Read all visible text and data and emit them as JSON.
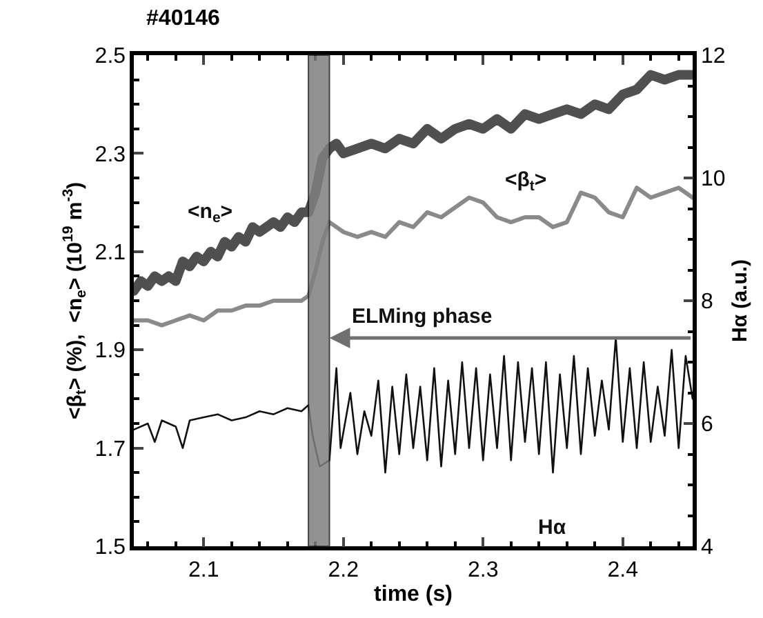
{
  "chart_data": {
    "type": "line",
    "title": "#40146",
    "xlabel": "time (s)",
    "ylabel": "<β$_{t}$> (%),  <n$_{e}$> (10$^{19}$ m$^{-3}$)",
    "y2label": "Hα (a.u.)",
    "xlim": [
      2.05,
      2.45
    ],
    "xticks": [
      2.1,
      2.2,
      2.3,
      2.4
    ],
    "ylim": [
      1.5,
      2.5
    ],
    "yticks": [
      1.5,
      1.7,
      1.9,
      2.1,
      2.3,
      2.5
    ],
    "y2lim": [
      4,
      12
    ],
    "y2ticks": [
      4,
      6,
      8,
      10,
      12
    ],
    "legend": false,
    "marker": "none",
    "line_style": "solid",
    "bands": [
      {
        "axis": "x",
        "from": 2.175,
        "to": 2.19,
        "color": "#808080"
      }
    ],
    "annotations": [
      {
        "text": "ELMing phase",
        "x": 2.19,
        "y": 1.924
      }
    ],
    "series": [
      {
        "name": "<n$_{e}$>",
        "color": "#505050",
        "x": [
          2.05,
          2.055,
          2.06,
          2.065,
          2.07,
          2.075,
          2.08,
          2.085,
          2.09,
          2.095,
          2.1,
          2.105,
          2.11,
          2.115,
          2.12,
          2.125,
          2.13,
          2.135,
          2.14,
          2.145,
          2.15,
          2.155,
          2.16,
          2.165,
          2.17,
          2.175,
          2.18,
          2.185,
          2.19,
          2.195,
          2.2,
          2.21,
          2.22,
          2.23,
          2.24,
          2.25,
          2.26,
          2.27,
          2.28,
          2.29,
          2.3,
          2.31,
          2.32,
          2.33,
          2.34,
          2.35,
          2.36,
          2.37,
          2.38,
          2.39,
          2.4,
          2.41,
          2.42,
          2.43,
          2.44,
          2.45
        ],
        "values": [
          2.02,
          2.04,
          2.03,
          2.05,
          2.04,
          2.05,
          2.04,
          2.08,
          2.07,
          2.09,
          2.08,
          2.1,
          2.09,
          2.12,
          2.11,
          2.13,
          2.12,
          2.15,
          2.14,
          2.15,
          2.16,
          2.15,
          2.17,
          2.16,
          2.18,
          2.18,
          2.22,
          2.29,
          2.31,
          2.32,
          2.3,
          2.31,
          2.32,
          2.31,
          2.33,
          2.32,
          2.35,
          2.33,
          2.35,
          2.36,
          2.35,
          2.37,
          2.35,
          2.38,
          2.37,
          2.38,
          2.39,
          2.38,
          2.4,
          2.39,
          2.42,
          2.43,
          2.46,
          2.45,
          2.46,
          2.46
        ]
      },
      {
        "name": "<β$_{t}$>",
        "color": "#8a8a8a",
        "x": [
          2.05,
          2.06,
          2.07,
          2.08,
          2.09,
          2.1,
          2.11,
          2.12,
          2.13,
          2.14,
          2.15,
          2.16,
          2.17,
          2.175,
          2.18,
          2.185,
          2.19,
          2.2,
          2.21,
          2.22,
          2.23,
          2.24,
          2.25,
          2.26,
          2.27,
          2.28,
          2.29,
          2.3,
          2.31,
          2.32,
          2.33,
          2.34,
          2.35,
          2.36,
          2.37,
          2.38,
          2.39,
          2.4,
          2.41,
          2.42,
          2.43,
          2.44,
          2.45
        ],
        "values": [
          1.96,
          1.96,
          1.95,
          1.96,
          1.97,
          1.96,
          1.98,
          1.98,
          1.99,
          1.99,
          2.0,
          2.0,
          2.0,
          2.01,
          2.06,
          2.12,
          2.16,
          2.14,
          2.13,
          2.14,
          2.13,
          2.16,
          2.15,
          2.18,
          2.17,
          2.19,
          2.21,
          2.2,
          2.17,
          2.16,
          2.17,
          2.17,
          2.15,
          2.16,
          2.22,
          2.21,
          2.18,
          2.17,
          2.23,
          2.21,
          2.22,
          2.23,
          2.21
        ]
      },
      {
        "name": "Hα",
        "color": "#111111",
        "axis": "y2",
        "x": [
          2.05,
          2.06,
          2.065,
          2.07,
          2.08,
          2.085,
          2.09,
          2.1,
          2.11,
          2.12,
          2.13,
          2.14,
          2.15,
          2.16,
          2.17,
          2.175,
          2.178,
          2.183,
          2.19,
          2.195,
          2.198,
          2.205,
          2.21,
          2.215,
          2.22,
          2.225,
          2.23,
          2.235,
          2.24,
          2.245,
          2.25,
          2.255,
          2.26,
          2.265,
          2.27,
          2.275,
          2.28,
          2.285,
          2.29,
          2.295,
          2.3,
          2.305,
          2.31,
          2.315,
          2.32,
          2.325,
          2.33,
          2.335,
          2.34,
          2.345,
          2.35,
          2.355,
          2.36,
          2.365,
          2.37,
          2.375,
          2.38,
          2.385,
          2.39,
          2.395,
          2.4,
          2.405,
          2.41,
          2.415,
          2.42,
          2.425,
          2.43,
          2.435,
          2.44,
          2.445,
          2.45
        ],
        "values": [
          5.9,
          6.0,
          5.7,
          6.05,
          5.95,
          5.6,
          6.05,
          6.1,
          6.15,
          6.05,
          6.1,
          6.2,
          6.15,
          6.25,
          6.2,
          6.3,
          5.8,
          5.3,
          5.4,
          6.9,
          5.6,
          6.5,
          5.5,
          6.2,
          5.8,
          6.7,
          5.2,
          6.6,
          5.5,
          6.8,
          5.6,
          6.6,
          5.4,
          6.9,
          5.3,
          6.7,
          5.5,
          7.0,
          5.6,
          6.9,
          5.4,
          6.8,
          5.6,
          7.1,
          5.4,
          7.0,
          5.7,
          6.9,
          5.5,
          7.0,
          5.2,
          6.8,
          5.6,
          7.1,
          5.5,
          6.9,
          5.8,
          6.7,
          5.9,
          7.4,
          5.7,
          6.9,
          5.6,
          7.0,
          5.7,
          6.6,
          5.8,
          7.2,
          5.6,
          7.1,
          6.4
        ]
      }
    ]
  }
}
